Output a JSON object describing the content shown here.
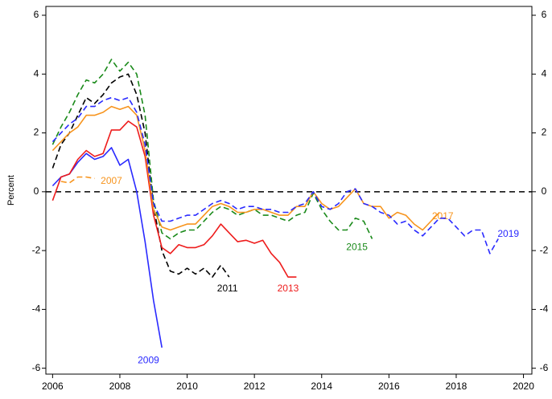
{
  "chart_data": {
    "type": "line",
    "y_label": "Percent",
    "xlim": [
      2005.8,
      2020.25
    ],
    "ylim": [
      -6.2,
      6.3
    ],
    "xticks": [
      2006,
      2008,
      2010,
      2012,
      2014,
      2016,
      2018,
      2020
    ],
    "yticks": [
      -6,
      -4,
      -2,
      0,
      2,
      4,
      6
    ],
    "hline": 0,
    "series": [
      {
        "name": "2007",
        "color": "#f7941d",
        "dash": true,
        "x": [
          2006.25,
          2006.5,
          2006.75,
          2007.0,
          2007.25
        ],
        "values": [
          0.35,
          0.3,
          0.5,
          0.5,
          0.45
        ]
      },
      {
        "name": "2009",
        "color": "#2a2aff",
        "dash": false,
        "x": [
          2006.0,
          2006.25,
          2006.5,
          2006.75,
          2007.0,
          2007.25,
          2007.5,
          2007.75,
          2008.0,
          2008.25,
          2008.5,
          2008.75,
          2009.0,
          2009.25
        ],
        "values": [
          0.2,
          0.5,
          0.6,
          1.0,
          1.3,
          1.1,
          1.2,
          1.5,
          0.9,
          1.1,
          0.0,
          -1.7,
          -3.7,
          -5.3
        ]
      },
      {
        "name": "2011",
        "color": "#000000",
        "dash": true,
        "x": [
          2006.0,
          2006.25,
          2006.5,
          2006.75,
          2007.0,
          2007.25,
          2007.5,
          2007.75,
          2008.0,
          2008.25,
          2008.5,
          2008.75,
          2009.0,
          2009.25,
          2009.5,
          2009.75,
          2010.0,
          2010.25,
          2010.5,
          2010.75,
          2011.0,
          2011.25
        ],
        "values": [
          0.8,
          1.6,
          2.0,
          2.6,
          3.2,
          3.0,
          3.3,
          3.7,
          3.9,
          4.0,
          3.3,
          2.0,
          -0.5,
          -2.0,
          -2.7,
          -2.8,
          -2.6,
          -2.8,
          -2.6,
          -2.9,
          -2.5,
          -2.9
        ]
      },
      {
        "name": "2013",
        "color": "#ee1c1c",
        "dash": false,
        "x": [
          2006.0,
          2006.25,
          2006.5,
          2006.75,
          2007.0,
          2007.25,
          2007.5,
          2007.75,
          2008.0,
          2008.25,
          2008.5,
          2008.75,
          2009.0,
          2009.25,
          2009.5,
          2009.75,
          2010.0,
          2010.25,
          2010.5,
          2010.75,
          2011.0,
          2011.25,
          2011.5,
          2011.75,
          2012.0,
          2012.25,
          2012.5,
          2012.75,
          2013.0,
          2013.25
        ],
        "values": [
          -0.3,
          0.5,
          0.6,
          1.1,
          1.4,
          1.2,
          1.3,
          2.1,
          2.1,
          2.4,
          2.2,
          1.2,
          -0.8,
          -1.9,
          -2.1,
          -1.8,
          -1.9,
          -1.9,
          -1.8,
          -1.5,
          -1.1,
          -1.4,
          -1.7,
          -1.65,
          -1.75,
          -1.65,
          -2.1,
          -2.4,
          -2.9,
          -2.9
        ]
      },
      {
        "name": "2015",
        "color": "#1a8a1a",
        "dash": true,
        "x": [
          2006.0,
          2006.25,
          2006.5,
          2006.75,
          2007.0,
          2007.25,
          2007.5,
          2007.75,
          2008.0,
          2008.25,
          2008.5,
          2008.75,
          2009.0,
          2009.25,
          2009.5,
          2009.75,
          2010.0,
          2010.25,
          2010.5,
          2010.75,
          2011.0,
          2011.25,
          2011.5,
          2011.75,
          2012.0,
          2012.25,
          2012.5,
          2012.75,
          2013.0,
          2013.25,
          2013.5,
          2013.75,
          2014.0,
          2014.25,
          2014.5,
          2014.75,
          2015.0,
          2015.25,
          2015.5
        ],
        "values": [
          1.6,
          2.2,
          2.7,
          3.3,
          3.8,
          3.7,
          4.0,
          4.5,
          4.1,
          4.4,
          4.0,
          2.6,
          -0.3,
          -1.4,
          -1.6,
          -1.4,
          -1.3,
          -1.3,
          -1.0,
          -0.7,
          -0.5,
          -0.6,
          -0.8,
          -0.7,
          -0.6,
          -0.8,
          -0.8,
          -0.9,
          -1.0,
          -0.8,
          -0.7,
          -0.05,
          -0.6,
          -1.0,
          -1.3,
          -1.3,
          -0.9,
          -1.0,
          -1.6
        ]
      },
      {
        "name": "2017",
        "color": "#f7941d",
        "dash": false,
        "x": [
          2006.0,
          2006.25,
          2006.5,
          2006.75,
          2007.0,
          2007.25,
          2007.5,
          2007.75,
          2008.0,
          2008.25,
          2008.5,
          2008.75,
          2009.0,
          2009.25,
          2009.5,
          2009.75,
          2010.0,
          2010.25,
          2010.5,
          2010.75,
          2011.0,
          2011.25,
          2011.5,
          2011.75,
          2012.0,
          2012.25,
          2012.5,
          2012.75,
          2013.0,
          2013.25,
          2013.5,
          2013.75,
          2014.0,
          2014.25,
          2014.5,
          2014.75,
          2015.0,
          2015.25,
          2015.5,
          2015.75,
          2016.0,
          2016.25,
          2016.5,
          2016.75,
          2017.0,
          2017.25,
          2017.5
        ],
        "values": [
          1.4,
          1.7,
          2.0,
          2.2,
          2.6,
          2.6,
          2.7,
          2.9,
          2.8,
          2.9,
          2.6,
          1.4,
          -0.6,
          -1.2,
          -1.3,
          -1.2,
          -1.1,
          -1.1,
          -0.8,
          -0.5,
          -0.4,
          -0.5,
          -0.7,
          -0.7,
          -0.6,
          -0.6,
          -0.7,
          -0.8,
          -0.8,
          -0.5,
          -0.5,
          0.0,
          -0.4,
          -0.6,
          -0.5,
          -0.2,
          0.1,
          -0.4,
          -0.5,
          -0.5,
          -0.9,
          -0.7,
          -0.8,
          -1.1,
          -1.3,
          -1.0,
          -0.7
        ]
      },
      {
        "name": "2019",
        "color": "#2a2aff",
        "dash": true,
        "x": [
          2006.0,
          2006.25,
          2006.5,
          2006.75,
          2007.0,
          2007.25,
          2007.5,
          2007.75,
          2008.0,
          2008.25,
          2008.5,
          2008.75,
          2009.0,
          2009.25,
          2009.5,
          2009.75,
          2010.0,
          2010.25,
          2010.5,
          2010.75,
          2011.0,
          2011.25,
          2011.5,
          2011.75,
          2012.0,
          2012.25,
          2012.5,
          2012.75,
          2013.0,
          2013.25,
          2013.5,
          2013.75,
          2014.0,
          2014.25,
          2014.5,
          2014.75,
          2015.0,
          2015.25,
          2015.5,
          2015.75,
          2016.0,
          2016.25,
          2016.5,
          2016.75,
          2017.0,
          2017.25,
          2017.5,
          2017.75,
          2018.0,
          2018.25,
          2018.5,
          2018.75,
          2019.0,
          2019.25
        ],
        "values": [
          1.7,
          2.0,
          2.3,
          2.5,
          2.9,
          2.9,
          3.1,
          3.2,
          3.1,
          3.2,
          2.7,
          1.6,
          -0.4,
          -1.0,
          -1.0,
          -0.9,
          -0.8,
          -0.8,
          -0.6,
          -0.4,
          -0.3,
          -0.4,
          -0.6,
          -0.5,
          -0.5,
          -0.6,
          -0.6,
          -0.7,
          -0.7,
          -0.5,
          -0.4,
          0.0,
          -0.5,
          -0.6,
          -0.4,
          0.0,
          0.1,
          -0.4,
          -0.5,
          -0.7,
          -0.8,
          -1.1,
          -1.0,
          -1.3,
          -1.5,
          -1.2,
          -0.9,
          -0.9,
          -1.2,
          -1.5,
          -1.3,
          -1.3,
          -2.1,
          -1.6
        ]
      }
    ]
  }
}
